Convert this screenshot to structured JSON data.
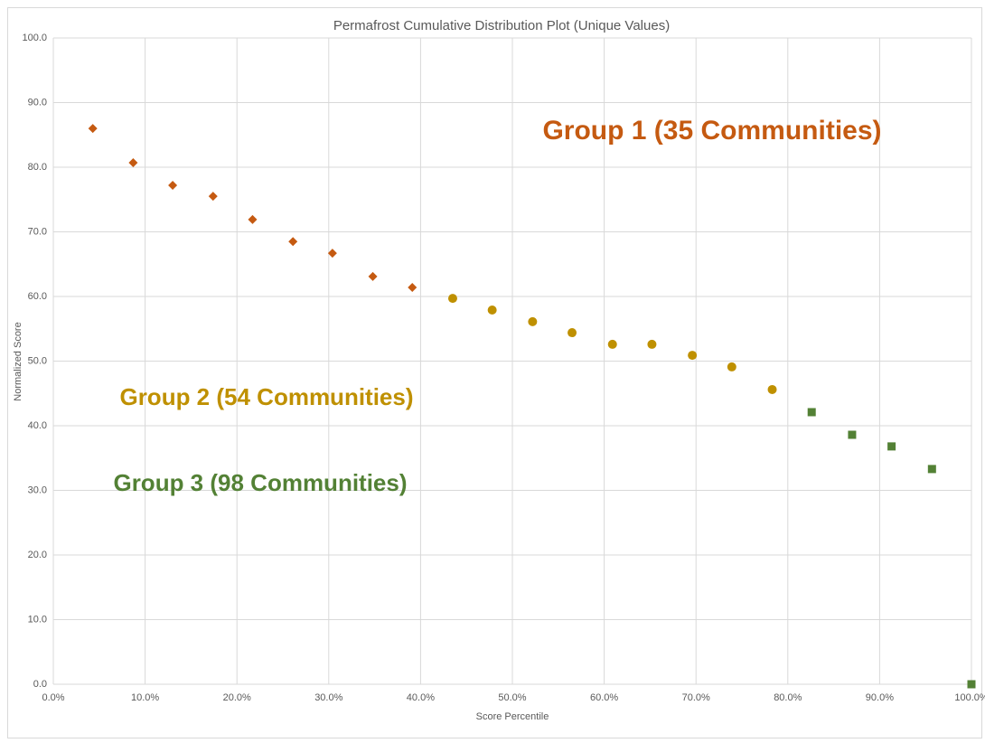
{
  "chart_data": {
    "type": "scatter",
    "title": "Permafrost Cumulative Distribution Plot (Unique Values)",
    "x_label": "Score Percentile",
    "y_label": "Normalized Score",
    "xlim": [
      0,
      100
    ],
    "ylim": [
      0,
      100
    ],
    "xticks": [
      {
        "value": 0,
        "label": "0.0%"
      },
      {
        "value": 10,
        "label": "10.0%"
      },
      {
        "value": 20,
        "label": "20.0%"
      },
      {
        "value": 30,
        "label": "30.0%"
      },
      {
        "value": 40,
        "label": "40.0%"
      },
      {
        "value": 50,
        "label": "50.0%"
      },
      {
        "value": 60,
        "label": "60.0%"
      },
      {
        "value": 70,
        "label": "70.0%"
      },
      {
        "value": 80,
        "label": "80.0%"
      },
      {
        "value": 90,
        "label": "90.0%"
      },
      {
        "value": 100,
        "label": "100.0%"
      }
    ],
    "yticks": [
      {
        "value": 0,
        "label": "0.0"
      },
      {
        "value": 10,
        "label": "10.0"
      },
      {
        "value": 20,
        "label": "20.0"
      },
      {
        "value": 30,
        "label": "30.0"
      },
      {
        "value": 40,
        "label": "40.0"
      },
      {
        "value": 50,
        "label": "50.0"
      },
      {
        "value": 60,
        "label": "60.0"
      },
      {
        "value": 70,
        "label": "70.0"
      },
      {
        "value": 80,
        "label": "80.0"
      },
      {
        "value": 90,
        "label": "90.0"
      },
      {
        "value": 100,
        "label": "100.0"
      }
    ],
    "grid": true,
    "series": [
      {
        "color": "#c55a11",
        "marker": "diamond",
        "x": [
          4.3,
          8.7,
          13.0,
          17.4,
          21.7,
          26.1,
          30.4,
          34.8,
          39.1
        ],
        "values": [
          86.0,
          80.7,
          77.2,
          75.5,
          71.9,
          68.5,
          66.7,
          63.1,
          61.4
        ]
      },
      {
        "color": "#bf9000",
        "marker": "circle",
        "x": [
          43.5,
          47.8,
          52.2,
          56.5,
          60.9,
          65.2,
          69.6,
          73.9,
          78.3
        ],
        "values": [
          59.7,
          57.9,
          56.1,
          54.4,
          52.6,
          52.6,
          50.9,
          49.1,
          45.6
        ]
      },
      {
        "color": "#538135",
        "marker": "square",
        "x": [
          82.6,
          87.0,
          91.3,
          95.7,
          100.0
        ],
        "values": [
          42.1,
          38.6,
          36.8,
          33.3,
          0.0
        ]
      }
    ],
    "annotations": [
      {
        "text": "Group 1 (35 Communities)",
        "color": "#c55a11"
      },
      {
        "text": "Group 2 (54 Communities)",
        "color": "#bf9000"
      },
      {
        "text": "Group 3 (98 Communities)",
        "color": "#538135"
      }
    ]
  }
}
